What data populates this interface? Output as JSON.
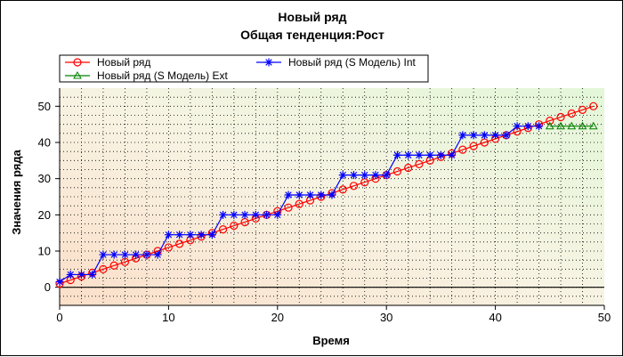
{
  "chart_data": {
    "type": "line",
    "title": "Новый ряд",
    "subtitle": "Общая  тенденция:Рост",
    "xlabel": "Время",
    "ylabel": "Значения ряда",
    "xlim": [
      0,
      50
    ],
    "ylim": [
      -5,
      55
    ],
    "xticks": [
      "0",
      "10",
      "20",
      "30",
      "40",
      "50"
    ],
    "yticks": [
      "0",
      "10",
      "20",
      "30",
      "40",
      "50"
    ],
    "grid": true,
    "legend_position": "top",
    "series": [
      {
        "name": "Новый ряд",
        "color": "#ff0000",
        "marker": "circle",
        "x": [
          0,
          1,
          2,
          3,
          4,
          5,
          6,
          7,
          8,
          9,
          10,
          11,
          12,
          13,
          14,
          15,
          16,
          17,
          18,
          19,
          20,
          21,
          22,
          23,
          24,
          25,
          26,
          27,
          28,
          29,
          30,
          31,
          32,
          33,
          34,
          35,
          36,
          37,
          38,
          39,
          40,
          41,
          42,
          43,
          44,
          45,
          46,
          47,
          48,
          49
        ],
        "values": [
          1,
          2,
          3,
          4,
          5,
          6,
          7,
          8,
          9,
          10,
          11,
          12,
          13,
          14,
          15,
          16,
          17,
          18,
          19,
          20,
          21,
          22,
          23,
          24,
          25,
          26,
          27,
          28,
          29,
          30,
          31,
          32,
          33,
          34,
          35,
          36,
          37,
          38,
          39,
          40,
          41,
          42,
          43,
          44,
          45,
          46,
          47,
          48,
          49,
          50
        ]
      },
      {
        "name": "Новый ряд (S Модель) Int",
        "color": "#0000ff",
        "marker": "asterisk",
        "x": [
          0,
          1,
          2,
          3,
          4,
          5,
          6,
          7,
          8,
          9,
          10,
          11,
          12,
          13,
          14,
          15,
          16,
          17,
          18,
          19,
          20,
          21,
          22,
          23,
          24,
          25,
          26,
          27,
          28,
          29,
          30,
          31,
          32,
          33,
          34,
          35,
          36,
          37,
          38,
          39,
          40,
          41,
          42,
          43,
          44
        ],
        "values": [
          1.5,
          3.5,
          3.5,
          3.5,
          9,
          9,
          9,
          9,
          9,
          9,
          14.5,
          14.5,
          14.5,
          14.5,
          14.5,
          20,
          20,
          20,
          20,
          20,
          20,
          25.5,
          25.5,
          25.5,
          25.5,
          25.5,
          31,
          31,
          31,
          31,
          31,
          36.5,
          36.5,
          36.5,
          36.5,
          36.5,
          36.5,
          42,
          42,
          42,
          42,
          42,
          44.5,
          44.5,
          44.5
        ]
      },
      {
        "name": "Новый ряд (S Модель) Ext",
        "color": "#008000",
        "marker": "triangle",
        "x": [
          45,
          46,
          47,
          48,
          49
        ],
        "values": [
          44.5,
          44.5,
          44.5,
          44.5,
          44.5
        ]
      }
    ]
  }
}
